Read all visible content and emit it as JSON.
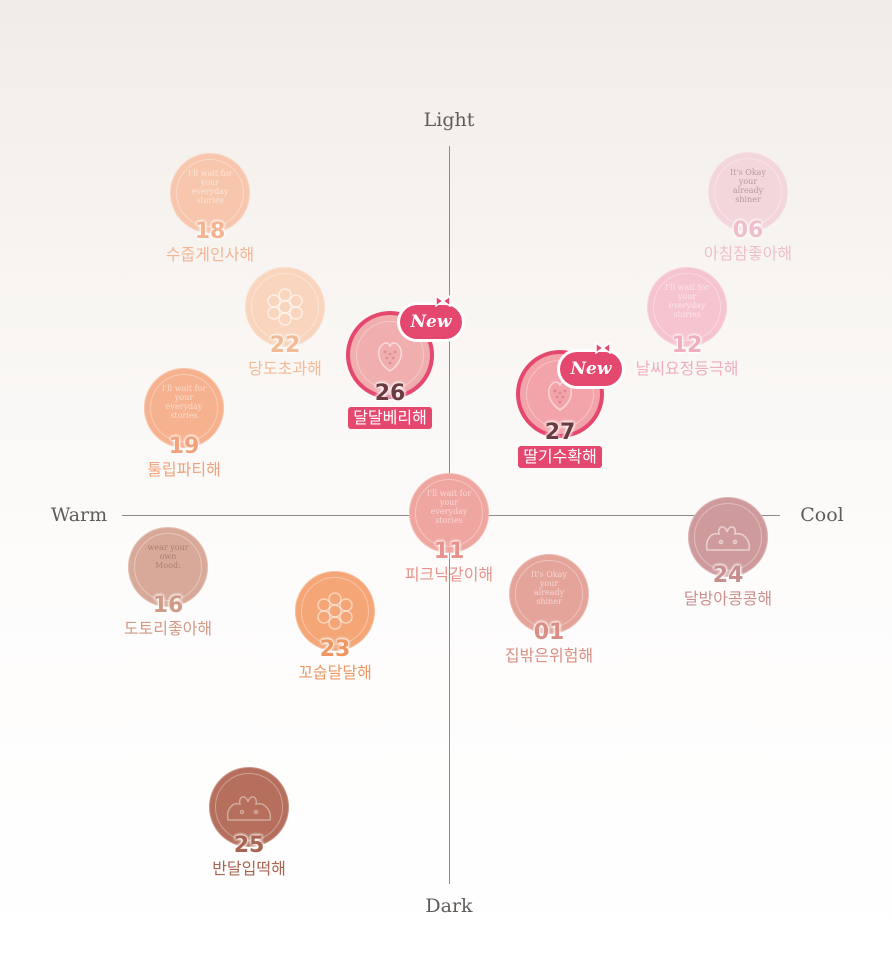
{
  "axes": {
    "top": "Light",
    "bottom": "Dark",
    "left": "Warm",
    "right": "Cool"
  },
  "badge_text": "New",
  "products": [
    {
      "code": "18",
      "name": "수줍게인사해",
      "pan_color": "#f7c6ad",
      "text_color": "#f3b494",
      "pan_text": "I'll wait for\nyour\neveryday\nstories"
    },
    {
      "code": "22",
      "name": "당도초과해",
      "pan_color": "#f9d5bd",
      "text_color": "#f2bb98",
      "pan_text": ""
    },
    {
      "code": "19",
      "name": "툴립파티해",
      "pan_color": "#f6b18e",
      "text_color": "#f0a27c",
      "pan_text": "I'll wait for\nyour\neveryday\nstories"
    },
    {
      "code": "26",
      "name": "달달베리해",
      "pan_color": "#f0aeae",
      "text_color": "#6a3b3f",
      "pan_text": "",
      "is_new": true
    },
    {
      "code": "27",
      "name": "딸기수확해",
      "pan_color": "#f3a3aa",
      "text_color": "#6a3b3f",
      "pan_text": "",
      "is_new": true
    },
    {
      "code": "06",
      "name": "아침잠좋아해",
      "pan_color": "#f3d6dc",
      "text_color": "#efbfc9",
      "pan_text": "It's Okay\nyour\nalready\nshiner"
    },
    {
      "code": "12",
      "name": "날씨요정등극해",
      "pan_color": "#f6c4cf",
      "text_color": "#eeaebd",
      "pan_text": "I'll wait for\nyour\neveryday\nstories"
    },
    {
      "code": "11",
      "name": "피크닉같이해",
      "pan_color": "#f0a6a0",
      "text_color": "#e7928c",
      "pan_text": "I'll wait for\nyour\neveryday\nstories"
    },
    {
      "code": "24",
      "name": "달방아콩콩해",
      "pan_color": "#cf9a9c",
      "text_color": "#c98f8f",
      "pan_text": ""
    },
    {
      "code": "16",
      "name": "도토리좋아해",
      "pan_color": "#d8a998",
      "text_color": "#d19a86",
      "pan_text": "wear your\nown\nMood:"
    },
    {
      "code": "23",
      "name": "꼬숩달달해",
      "pan_color": "#f4a677",
      "text_color": "#ee9763",
      "pan_text": ""
    },
    {
      "code": "01",
      "name": "집밖은위험해",
      "pan_color": "#e4a49a",
      "text_color": "#d98f85",
      "pan_text": "It's Okay\nyour\nalready\nshiner"
    },
    {
      "code": "25",
      "name": "반달입떡해",
      "pan_color": "#b56f5c",
      "text_color": "#a86451",
      "pan_text": ""
    }
  ]
}
